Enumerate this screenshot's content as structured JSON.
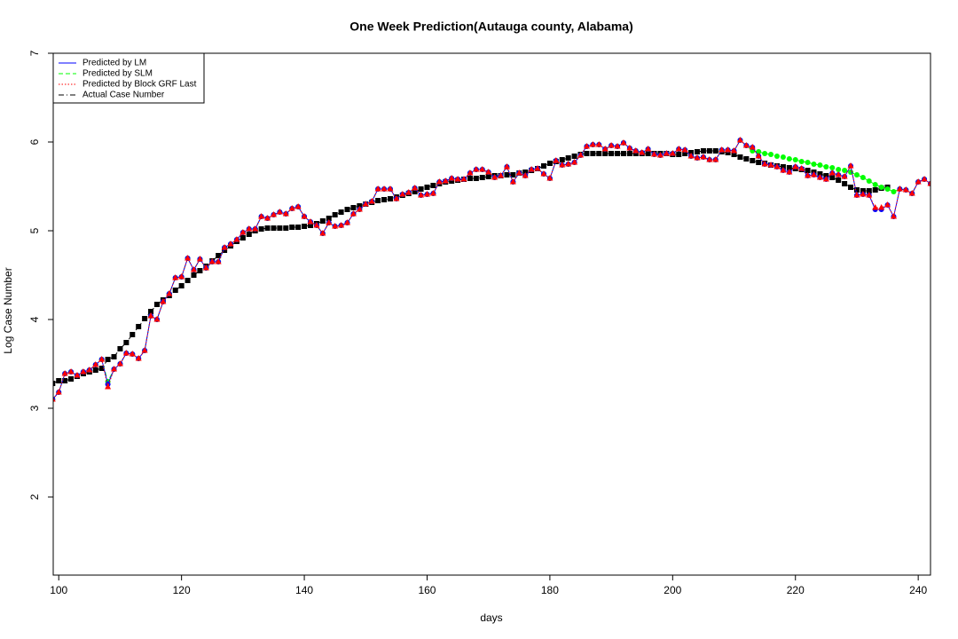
{
  "chart_data": {
    "type": "line",
    "title": "One Week Prediction(Autauga county, Alabama)",
    "x_label": "days",
    "y_label": "Log Case Number",
    "x": [
      99,
      100,
      101,
      102,
      103,
      104,
      105,
      106,
      107,
      108,
      109,
      110,
      111,
      112,
      113,
      114,
      115,
      116,
      117,
      118,
      119,
      120,
      121,
      122,
      123,
      124,
      125,
      126,
      127,
      128,
      129,
      130,
      131,
      132,
      133,
      134,
      135,
      136,
      137,
      138,
      139,
      140,
      141,
      142,
      143,
      144,
      145,
      146,
      147,
      148,
      149,
      150,
      151,
      152,
      153,
      154,
      155,
      156,
      157,
      158,
      159,
      160,
      161,
      162,
      163,
      164,
      165,
      166,
      167,
      168,
      169,
      170,
      171,
      172,
      173,
      174,
      175,
      176,
      177,
      178,
      179,
      180,
      181,
      182,
      183,
      184,
      185,
      186,
      187,
      188,
      189,
      190,
      191,
      192,
      193,
      194,
      195,
      196,
      197,
      198,
      199,
      200,
      201,
      202,
      203,
      204,
      205,
      206,
      207,
      208,
      209,
      210,
      211,
      212,
      213,
      214,
      215,
      216,
      217,
      218,
      219,
      220,
      221,
      222,
      223,
      224,
      225,
      226,
      227,
      228,
      229,
      230,
      231,
      232,
      233,
      234,
      235,
      236,
      237,
      238,
      239,
      240,
      241,
      242
    ],
    "series": [
      {
        "name": "Actual Case Number",
        "color": "#000000",
        "values": [
          3.28,
          3.31,
          3.31,
          3.33,
          3.36,
          3.39,
          3.41,
          3.43,
          3.45,
          3.55,
          3.58,
          3.67,
          3.74,
          3.83,
          3.92,
          4.01,
          4.09,
          4.17,
          4.22,
          4.27,
          4.33,
          4.38,
          4.44,
          4.5,
          4.55,
          4.6,
          4.66,
          4.72,
          4.78,
          4.83,
          4.88,
          4.92,
          4.96,
          5.0,
          5.02,
          5.03,
          5.03,
          5.03,
          5.03,
          5.04,
          5.04,
          5.05,
          5.06,
          5.08,
          5.11,
          5.14,
          5.18,
          5.21,
          5.24,
          5.26,
          5.28,
          5.3,
          5.32,
          5.34,
          5.35,
          5.36,
          5.38,
          5.4,
          5.42,
          5.44,
          5.47,
          5.49,
          5.51,
          5.53,
          5.55,
          5.56,
          5.57,
          5.58,
          5.59,
          5.59,
          5.6,
          5.61,
          5.62,
          5.62,
          5.63,
          5.63,
          5.65,
          5.66,
          5.68,
          5.7,
          5.73,
          5.76,
          5.78,
          5.8,
          5.82,
          5.84,
          5.86,
          5.87,
          5.87,
          5.87,
          5.87,
          5.87,
          5.87,
          5.87,
          5.87,
          5.87,
          5.87,
          5.87,
          5.87,
          5.87,
          5.87,
          5.86,
          5.86,
          5.87,
          5.88,
          5.89,
          5.9,
          5.9,
          5.9,
          5.89,
          5.88,
          5.86,
          5.83,
          5.81,
          5.79,
          5.77,
          5.76,
          5.74,
          5.73,
          5.72,
          5.71,
          5.7,
          5.69,
          5.68,
          5.66,
          5.64,
          5.62,
          5.6,
          5.57,
          5.53,
          5.49,
          5.46,
          5.45,
          5.45,
          5.46,
          5.48,
          5.49,
          null,
          null,
          null,
          null,
          null,
          null,
          null
        ]
      },
      {
        "name": "Predicted by SLM",
        "color": "#00ff00",
        "values": [
          3.1,
          3.18,
          3.39,
          3.41,
          3.37,
          3.41,
          3.43,
          3.49,
          3.55,
          3.3,
          3.44,
          3.5,
          3.62,
          3.61,
          3.56,
          3.65,
          4.04,
          4.0,
          4.2,
          4.29,
          4.47,
          4.48,
          4.69,
          4.56,
          4.68,
          4.58,
          4.65,
          4.65,
          4.81,
          4.85,
          4.9,
          4.98,
          5.02,
          5.02,
          5.16,
          5.14,
          5.18,
          5.21,
          5.19,
          5.25,
          5.27,
          5.16,
          5.1,
          5.06,
          4.97,
          5.09,
          5.05,
          5.06,
          5.09,
          5.19,
          5.24,
          5.3,
          5.33,
          5.47,
          5.47,
          5.47,
          5.36,
          5.41,
          5.43,
          5.48,
          5.4,
          5.41,
          5.42,
          5.55,
          5.56,
          5.59,
          5.58,
          5.58,
          5.65,
          5.69,
          5.69,
          5.66,
          5.6,
          5.62,
          5.72,
          5.55,
          5.65,
          5.62,
          5.69,
          5.7,
          5.64,
          5.59,
          5.79,
          5.74,
          5.75,
          5.77,
          5.85,
          5.95,
          5.97,
          5.97,
          5.92,
          5.96,
          5.95,
          5.99,
          5.93,
          5.9,
          5.88,
          5.92,
          5.86,
          5.85,
          5.87,
          5.87,
          5.92,
          5.91,
          5.84,
          5.82,
          5.83,
          5.8,
          5.8,
          5.91,
          5.91,
          5.9,
          6.02,
          5.96,
          5.9,
          5.89,
          5.87,
          5.86,
          5.84,
          5.83,
          5.81,
          5.8,
          5.78,
          5.77,
          5.75,
          5.74,
          5.72,
          5.71,
          5.69,
          5.68,
          5.66,
          5.63,
          5.6,
          5.56,
          5.52,
          5.49,
          5.47,
          5.44,
          5.47,
          5.46,
          5.42,
          5.55,
          5.58,
          5.53
        ]
      },
      {
        "name": "Predicted by LM",
        "color": "#0000ff",
        "values": [
          3.1,
          3.18,
          3.39,
          3.41,
          3.37,
          3.41,
          3.43,
          3.49,
          3.55,
          3.27,
          3.44,
          3.5,
          3.62,
          3.61,
          3.56,
          3.65,
          4.04,
          4.0,
          4.2,
          4.29,
          4.47,
          4.48,
          4.69,
          4.56,
          4.68,
          4.58,
          4.65,
          4.65,
          4.81,
          4.85,
          4.9,
          4.98,
          5.02,
          5.02,
          5.16,
          5.14,
          5.18,
          5.21,
          5.19,
          5.25,
          5.27,
          5.16,
          5.1,
          5.06,
          4.97,
          5.09,
          5.05,
          5.06,
          5.09,
          5.19,
          5.24,
          5.3,
          5.33,
          5.47,
          5.47,
          5.47,
          5.36,
          5.41,
          5.43,
          5.48,
          5.4,
          5.41,
          5.42,
          5.55,
          5.56,
          5.59,
          5.58,
          5.58,
          5.65,
          5.69,
          5.69,
          5.66,
          5.6,
          5.62,
          5.72,
          5.55,
          5.65,
          5.62,
          5.69,
          5.7,
          5.64,
          5.59,
          5.79,
          5.74,
          5.75,
          5.77,
          5.85,
          5.95,
          5.97,
          5.97,
          5.92,
          5.96,
          5.95,
          5.99,
          5.93,
          5.9,
          5.88,
          5.92,
          5.86,
          5.85,
          5.87,
          5.87,
          5.92,
          5.91,
          5.84,
          5.82,
          5.83,
          5.8,
          5.8,
          5.91,
          5.91,
          5.9,
          6.02,
          5.96,
          5.94,
          5.84,
          5.75,
          5.74,
          5.72,
          5.68,
          5.66,
          5.72,
          5.7,
          5.62,
          5.63,
          5.6,
          5.58,
          5.65,
          5.63,
          5.61,
          5.73,
          5.4,
          5.41,
          5.4,
          5.24,
          5.24,
          5.29,
          5.16,
          5.47,
          5.46,
          5.42,
          5.55,
          5.58,
          5.53
        ]
      },
      {
        "name": "Predicted by Block GRF Last",
        "color": "#ff0000",
        "values": [
          3.1,
          3.18,
          3.39,
          3.41,
          3.37,
          3.41,
          3.43,
          3.49,
          3.55,
          3.24,
          3.44,
          3.5,
          3.62,
          3.61,
          3.56,
          3.65,
          4.04,
          4.0,
          4.2,
          4.29,
          4.47,
          4.48,
          4.69,
          4.56,
          4.68,
          4.58,
          4.65,
          4.65,
          4.81,
          4.85,
          4.9,
          4.98,
          5.02,
          5.02,
          5.16,
          5.14,
          5.18,
          5.21,
          5.19,
          5.25,
          5.27,
          5.16,
          5.1,
          5.06,
          4.97,
          5.09,
          5.05,
          5.06,
          5.09,
          5.19,
          5.24,
          5.3,
          5.33,
          5.47,
          5.47,
          5.47,
          5.36,
          5.41,
          5.43,
          5.48,
          5.4,
          5.41,
          5.42,
          5.55,
          5.56,
          5.59,
          5.58,
          5.58,
          5.65,
          5.69,
          5.69,
          5.66,
          5.6,
          5.62,
          5.72,
          5.55,
          5.65,
          5.62,
          5.69,
          5.7,
          5.64,
          5.59,
          5.79,
          5.74,
          5.75,
          5.77,
          5.85,
          5.95,
          5.97,
          5.97,
          5.92,
          5.96,
          5.95,
          5.99,
          5.93,
          5.9,
          5.88,
          5.92,
          5.86,
          5.85,
          5.87,
          5.87,
          5.92,
          5.91,
          5.84,
          5.82,
          5.83,
          5.8,
          5.8,
          5.91,
          5.91,
          5.9,
          6.02,
          5.96,
          5.94,
          5.84,
          5.75,
          5.74,
          5.72,
          5.68,
          5.66,
          5.72,
          5.7,
          5.62,
          5.63,
          5.6,
          5.58,
          5.65,
          5.63,
          5.61,
          5.73,
          5.4,
          5.41,
          5.4,
          5.26,
          5.26,
          5.29,
          5.16,
          5.47,
          5.46,
          5.42,
          5.55,
          5.58,
          5.53
        ]
      }
    ],
    "legend_order": [
      2,
      1,
      3,
      0
    ],
    "legend_position": "top-left",
    "xlim": [
      99.1,
      242
    ],
    "xticks": [
      100,
      120,
      140,
      160,
      180,
      200,
      220,
      240
    ],
    "ylim": [
      1.12,
      7
    ],
    "yticks": [
      2,
      3,
      4,
      5,
      6,
      7
    ]
  }
}
